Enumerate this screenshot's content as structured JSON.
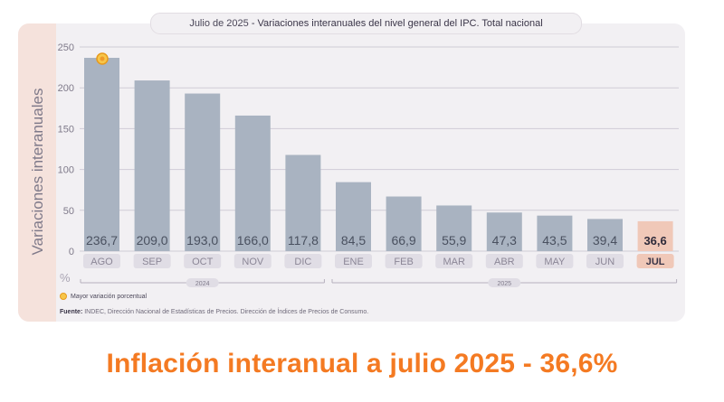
{
  "header": {
    "title_date": "Julio de 2025",
    "title_rest": " - Variaciones interanuales del nivel general del IPC. Total nacional"
  },
  "chart_data": {
    "type": "bar",
    "categories": [
      "AGO",
      "SEP",
      "OCT",
      "NOV",
      "DIC",
      "ENE",
      "FEB",
      "MAR",
      "ABR",
      "MAY",
      "JUN",
      "JUL"
    ],
    "values": [
      236.7,
      209.0,
      193.0,
      166.0,
      117.8,
      84.5,
      66.9,
      55.9,
      47.3,
      43.5,
      39.4,
      36.6
    ],
    "value_labels": [
      "236,7",
      "209,0",
      "193,0",
      "166,0",
      "117,8",
      "84,5",
      "66,9",
      "55,9",
      "47,3",
      "43,5",
      "39,4",
      "36,6"
    ],
    "ylabel": "Variaciones interanuales",
    "yunit": "%",
    "ylim": [
      0,
      250
    ],
    "yticks": [
      0,
      50,
      100,
      150,
      200,
      250
    ],
    "grid": true,
    "highlight_index": 11,
    "max_marker_index": 0,
    "year_groups": [
      {
        "label": "2024",
        "from": 0,
        "to": 4
      },
      {
        "label": "2025",
        "from": 5,
        "to": 11
      }
    ],
    "colors": {
      "bar": "#a9b3c1",
      "highlight": "#f0c8b8",
      "marker": "#f7c64a",
      "grid": "#cfccd6"
    }
  },
  "legend": {
    "label": "Mayor variación porcentual"
  },
  "source": {
    "label": "Fuente:",
    "text": " INDEC, Dirección Nacional de Estadísticas de Precios. Dirección de Índices de Precios de Consumo."
  },
  "headline": "Inflación interanual a julio 2025 - 36,6%"
}
